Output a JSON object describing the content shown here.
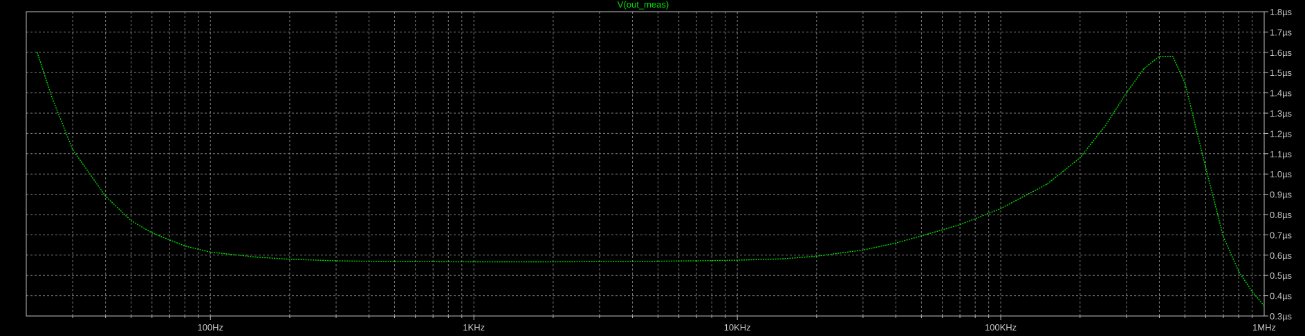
{
  "window": {
    "background": "#000000",
    "grid_color": "#808080",
    "axis_color": "#c0c0c0"
  },
  "chart_data": {
    "type": "line",
    "title": "V(out_meas)",
    "x_scale": "log",
    "xlim": [
      20,
      1000000
    ],
    "ylim": [
      0.3,
      1.8
    ],
    "grid": true,
    "x_tick_labels": [
      {
        "value": 100,
        "label": "100Hz"
      },
      {
        "value": 1000,
        "label": "1KHz"
      },
      {
        "value": 10000,
        "label": "10KHz"
      },
      {
        "value": 100000,
        "label": "100KHz"
      },
      {
        "value": 1000000,
        "label": "1MHz"
      }
    ],
    "y_tick_labels": [
      {
        "value": 0.3,
        "label": "0.3µs"
      },
      {
        "value": 0.4,
        "label": "0.4µs"
      },
      {
        "value": 0.5,
        "label": "0.5µs"
      },
      {
        "value": 0.6,
        "label": "0.6µs"
      },
      {
        "value": 0.7,
        "label": "0.7µs"
      },
      {
        "value": 0.8,
        "label": "0.8µs"
      },
      {
        "value": 0.9,
        "label": "0.9µs"
      },
      {
        "value": 1.0,
        "label": "1.0µs"
      },
      {
        "value": 1.1,
        "label": "1.1µs"
      },
      {
        "value": 1.2,
        "label": "1.2µs"
      },
      {
        "value": 1.3,
        "label": "1.3µs"
      },
      {
        "value": 1.4,
        "label": "1.4µs"
      },
      {
        "value": 1.5,
        "label": "1.5µs"
      },
      {
        "value": 1.6,
        "label": "1.6µs"
      },
      {
        "value": 1.7,
        "label": "1.7µs"
      },
      {
        "value": 1.8,
        "label": "1.8µs"
      }
    ],
    "series": [
      {
        "name": "V(out_meas)",
        "color": "#00e000",
        "x": [
          22,
          25,
          30,
          40,
          50,
          60,
          80,
          100,
          150,
          200,
          300,
          500,
          1000,
          2000,
          3000,
          5000,
          7000,
          10000,
          15000,
          20000,
          30000,
          40000,
          50000,
          70000,
          100000,
          150000,
          200000,
          250000,
          300000,
          350000,
          400000,
          450000,
          500000,
          600000,
          700000,
          800000,
          900000,
          1000000
        ],
        "values": [
          1.6,
          1.38,
          1.12,
          0.89,
          0.77,
          0.71,
          0.645,
          0.615,
          0.59,
          0.58,
          0.572,
          0.568,
          0.567,
          0.567,
          0.568,
          0.57,
          0.572,
          0.575,
          0.582,
          0.595,
          0.625,
          0.66,
          0.695,
          0.75,
          0.83,
          0.95,
          1.08,
          1.24,
          1.4,
          1.52,
          1.58,
          1.58,
          1.45,
          1.03,
          0.69,
          0.52,
          0.42,
          0.35
        ]
      }
    ]
  }
}
